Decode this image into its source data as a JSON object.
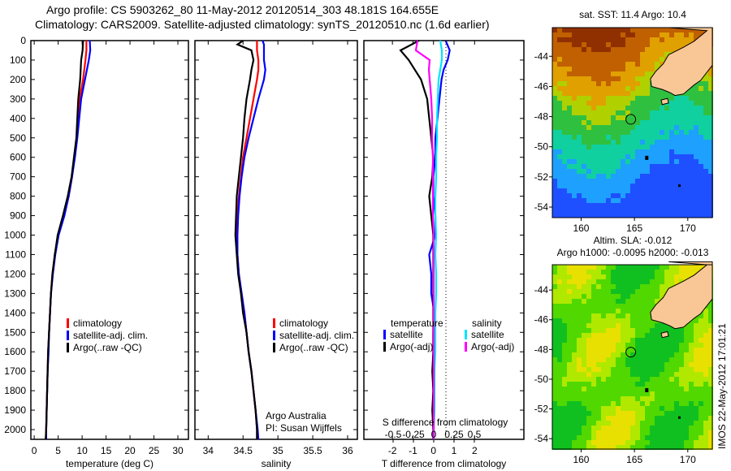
{
  "title_line1": "Argo profile: CS 5903262_80 11-May-2012 20120514_303 48.181S 164.655E",
  "title_line2": "Climatology: CARS2009. Satellite-adjusted climatology: synTS_20120510.nc (1.6d earlier)",
  "colors": {
    "climatology": "#ff0000",
    "satellite": "#0000ff",
    "argo": "#000000",
    "sal_sat": "#00e5ff",
    "sal_argo": "#ff00ff",
    "land": "#f9c796"
  },
  "chart_data": [
    {
      "type": "line",
      "id": "temperature",
      "xlabel": "temperature (deg C)",
      "xlim": [
        -0.7,
        32.2
      ],
      "ylim": [
        2050,
        0
      ],
      "xticks": [
        0,
        5,
        10,
        15,
        20,
        25,
        30
      ],
      "yticks": [
        0,
        100,
        200,
        300,
        400,
        500,
        600,
        700,
        800,
        900,
        1000,
        1100,
        1200,
        1300,
        1400,
        1500,
        1600,
        1700,
        1800,
        1900,
        2000
      ],
      "depth": [
        0,
        50,
        100,
        200,
        300,
        400,
        500,
        600,
        700,
        800,
        900,
        1000,
        1100,
        1200,
        1300,
        1400,
        1500,
        1600,
        1700,
        1800,
        1900,
        2000,
        2050
      ],
      "series": [
        {
          "name": "climatology",
          "color": "#ff0000",
          "values": [
            10.9,
            10.9,
            10.7,
            10.2,
            9.5,
            9.2,
            8.9,
            8.4,
            7.9,
            7.2,
            6.2,
            5.0,
            4.3,
            3.8,
            3.5,
            3.3,
            3.1,
            2.9,
            2.8,
            2.7,
            2.6,
            2.5,
            2.4
          ]
        },
        {
          "name": "satellite-adj. clim.",
          "color": "#0000ff",
          "values": [
            11.6,
            11.7,
            11.4,
            10.6,
            9.8,
            9.4,
            9.0,
            8.5,
            7.9,
            7.2,
            6.3,
            5.1,
            4.4,
            3.9,
            3.5,
            3.3,
            3.1,
            3.0,
            2.8,
            2.7,
            2.6,
            2.5,
            2.5
          ]
        },
        {
          "name": "Argo(..raw -QC)",
          "color": "#000000",
          "values": [
            10.2,
            10.1,
            9.8,
            9.6,
            9.2,
            9.0,
            8.8,
            8.3,
            7.8,
            7.0,
            6.0,
            4.9,
            4.3,
            3.8,
            3.5,
            3.3,
            3.1,
            2.9,
            2.8,
            2.7,
            2.6,
            2.5,
            2.4
          ]
        }
      ],
      "legend": [
        "climatology",
        "satellite-adj. clim.",
        "Argo(..raw -QC)"
      ]
    },
    {
      "type": "line",
      "id": "salinity",
      "xlabel": "salinity",
      "xlim": [
        33.81,
        36.14
      ],
      "ylim": [
        2050,
        0
      ],
      "xticks": [
        34,
        34.5,
        35,
        35.5,
        36
      ],
      "depth": [
        0,
        20,
        50,
        100,
        150,
        200,
        300,
        400,
        500,
        600,
        700,
        800,
        900,
        1000,
        1100,
        1200,
        1300,
        1400,
        1500,
        1600,
        1700,
        1800,
        1900,
        2000,
        2050
      ],
      "series": [
        {
          "name": "climatology",
          "color": "#ff0000",
          "values": [
            34.7,
            34.7,
            34.7,
            34.72,
            34.72,
            34.7,
            34.65,
            34.6,
            34.55,
            34.5,
            34.47,
            34.44,
            34.42,
            34.41,
            34.42,
            34.44,
            34.48,
            34.52,
            34.55,
            34.58,
            34.62,
            34.65,
            34.68,
            34.7,
            34.7
          ]
        },
        {
          "name": "satellite-adj. clim.",
          "color": "#0000ff",
          "values": [
            34.78,
            34.8,
            34.8,
            34.8,
            34.82,
            34.8,
            34.72,
            34.65,
            34.58,
            34.52,
            34.48,
            34.45,
            34.43,
            34.42,
            34.42,
            34.44,
            34.48,
            34.52,
            34.55,
            34.58,
            34.62,
            34.65,
            34.68,
            34.71,
            34.72
          ]
        },
        {
          "name": "Argo(..raw -QC)",
          "color": "#000000",
          "values": [
            34.5,
            34.42,
            34.62,
            34.65,
            34.62,
            34.6,
            34.55,
            34.52,
            34.5,
            34.47,
            34.44,
            34.41,
            34.4,
            34.39,
            34.41,
            34.43,
            34.47,
            34.5,
            34.55,
            34.58,
            34.62,
            34.65,
            34.68,
            34.7,
            34.7
          ]
        }
      ],
      "legend": [
        "climatology",
        "satellite-adj. clim.",
        "Argo(..raw -QC)"
      ],
      "annotation": [
        "Argo Australia",
        "PI: Susan Wijffels"
      ]
    },
    {
      "type": "line",
      "id": "difference",
      "xlabel": "T difference from climatology",
      "xlabel2": "S difference from climatology",
      "xlim": [
        -3.39,
        4.4
      ],
      "ylim": [
        2050,
        0
      ],
      "xticks": [
        -2,
        -1,
        0,
        1,
        2
      ],
      "xticks2": [
        "-0.5",
        "-0.25",
        "0",
        "0.25",
        "0.5"
      ],
      "depth": [
        0,
        50,
        100,
        150,
        200,
        300,
        400,
        500,
        600,
        700,
        800,
        900,
        1000,
        1100,
        1200,
        1300,
        1400,
        1500,
        1600,
        1700,
        1800,
        1900,
        2000,
        2050
      ],
      "series": [
        {
          "name": "temperature satellite",
          "color": "#0000ff",
          "scale": "T",
          "values": [
            0.6,
            0.8,
            0.7,
            0.5,
            0.4,
            0.3,
            0.2,
            0.1,
            0.1,
            0.0,
            0.0,
            0.1,
            0.1,
            -0.2,
            -0.1,
            -0.1,
            0.05,
            0.0,
            0.0,
            0.0,
            0.0,
            0.0,
            0.0,
            0.0
          ]
        },
        {
          "name": "temperature Argo(-adj)",
          "color": "#000000",
          "scale": "T",
          "values": [
            -0.7,
            -1.6,
            -1.2,
            -0.9,
            -0.6,
            -0.3,
            -0.2,
            -0.1,
            0.0,
            -0.05,
            -0.2,
            -0.1,
            0.0,
            0.0,
            0.0,
            0.0,
            0.0,
            0.0,
            0.0,
            -0.05,
            0.0,
            -0.05,
            0.0,
            0.0
          ]
        },
        {
          "name": "salinity satellite",
          "color": "#00e5ff",
          "scale": "S",
          "values": [
            0.08,
            0.1,
            0.1,
            0.08,
            0.06,
            0.05,
            0.04,
            0.04,
            0.03,
            0.03,
            0.02,
            0.02,
            0.03,
            0.02,
            0.03,
            0.03,
            0.02,
            0.02,
            0.02,
            0.01,
            0.01,
            0.01,
            0.0,
            0.0
          ]
        },
        {
          "name": "salinity Argo(-adj)",
          "color": "#ff00ff",
          "scale": "S",
          "values": [
            -0.2,
            -0.22,
            -0.05,
            -0.06,
            -0.05,
            -0.03,
            -0.02,
            -0.02,
            -0.01,
            -0.01,
            -0.01,
            -0.01,
            0.0,
            0.0,
            0.0,
            0.0,
            0.0,
            0.0,
            0.0,
            0.0,
            0.0,
            0.0,
            0.0,
            0.0
          ]
        }
      ],
      "legend": {
        "temperature_header": "temperature",
        "salinity_header": "salinity",
        "t_sat": "satellite",
        "t_argo": "Argo(-adj)",
        "s_sat": "satellite",
        "s_argo": "Argo(-adj)"
      }
    },
    {
      "type": "heatmap",
      "id": "sst_map",
      "title": "sat. SST: 11.4  Argo: 10.4",
      "lonlim": [
        157.3,
        172.3
      ],
      "latlim": [
        -54.7,
        -42.1
      ],
      "xticks": [
        160,
        165,
        170
      ],
      "yticks": [
        -44,
        -46,
        -48,
        -50,
        -52,
        -54
      ],
      "float_position": {
        "lon": 164.655,
        "lat": -48.181
      }
    },
    {
      "type": "heatmap",
      "id": "sla_map",
      "title": "Altim. SLA: -0.012",
      "subtitle": "Argo h1000: -0.0095 h2000: -0.013",
      "lonlim": [
        157.3,
        172.3
      ],
      "latlim": [
        -54.7,
        -42.3
      ],
      "xticks": [
        160,
        165,
        170
      ],
      "yticks": [
        -44,
        -46,
        -48,
        -50,
        -52,
        -54
      ],
      "float_position": {
        "lon": 164.655,
        "lat": -48.181
      }
    }
  ],
  "credit": "IMOS 22-May-2012 17:01:21"
}
